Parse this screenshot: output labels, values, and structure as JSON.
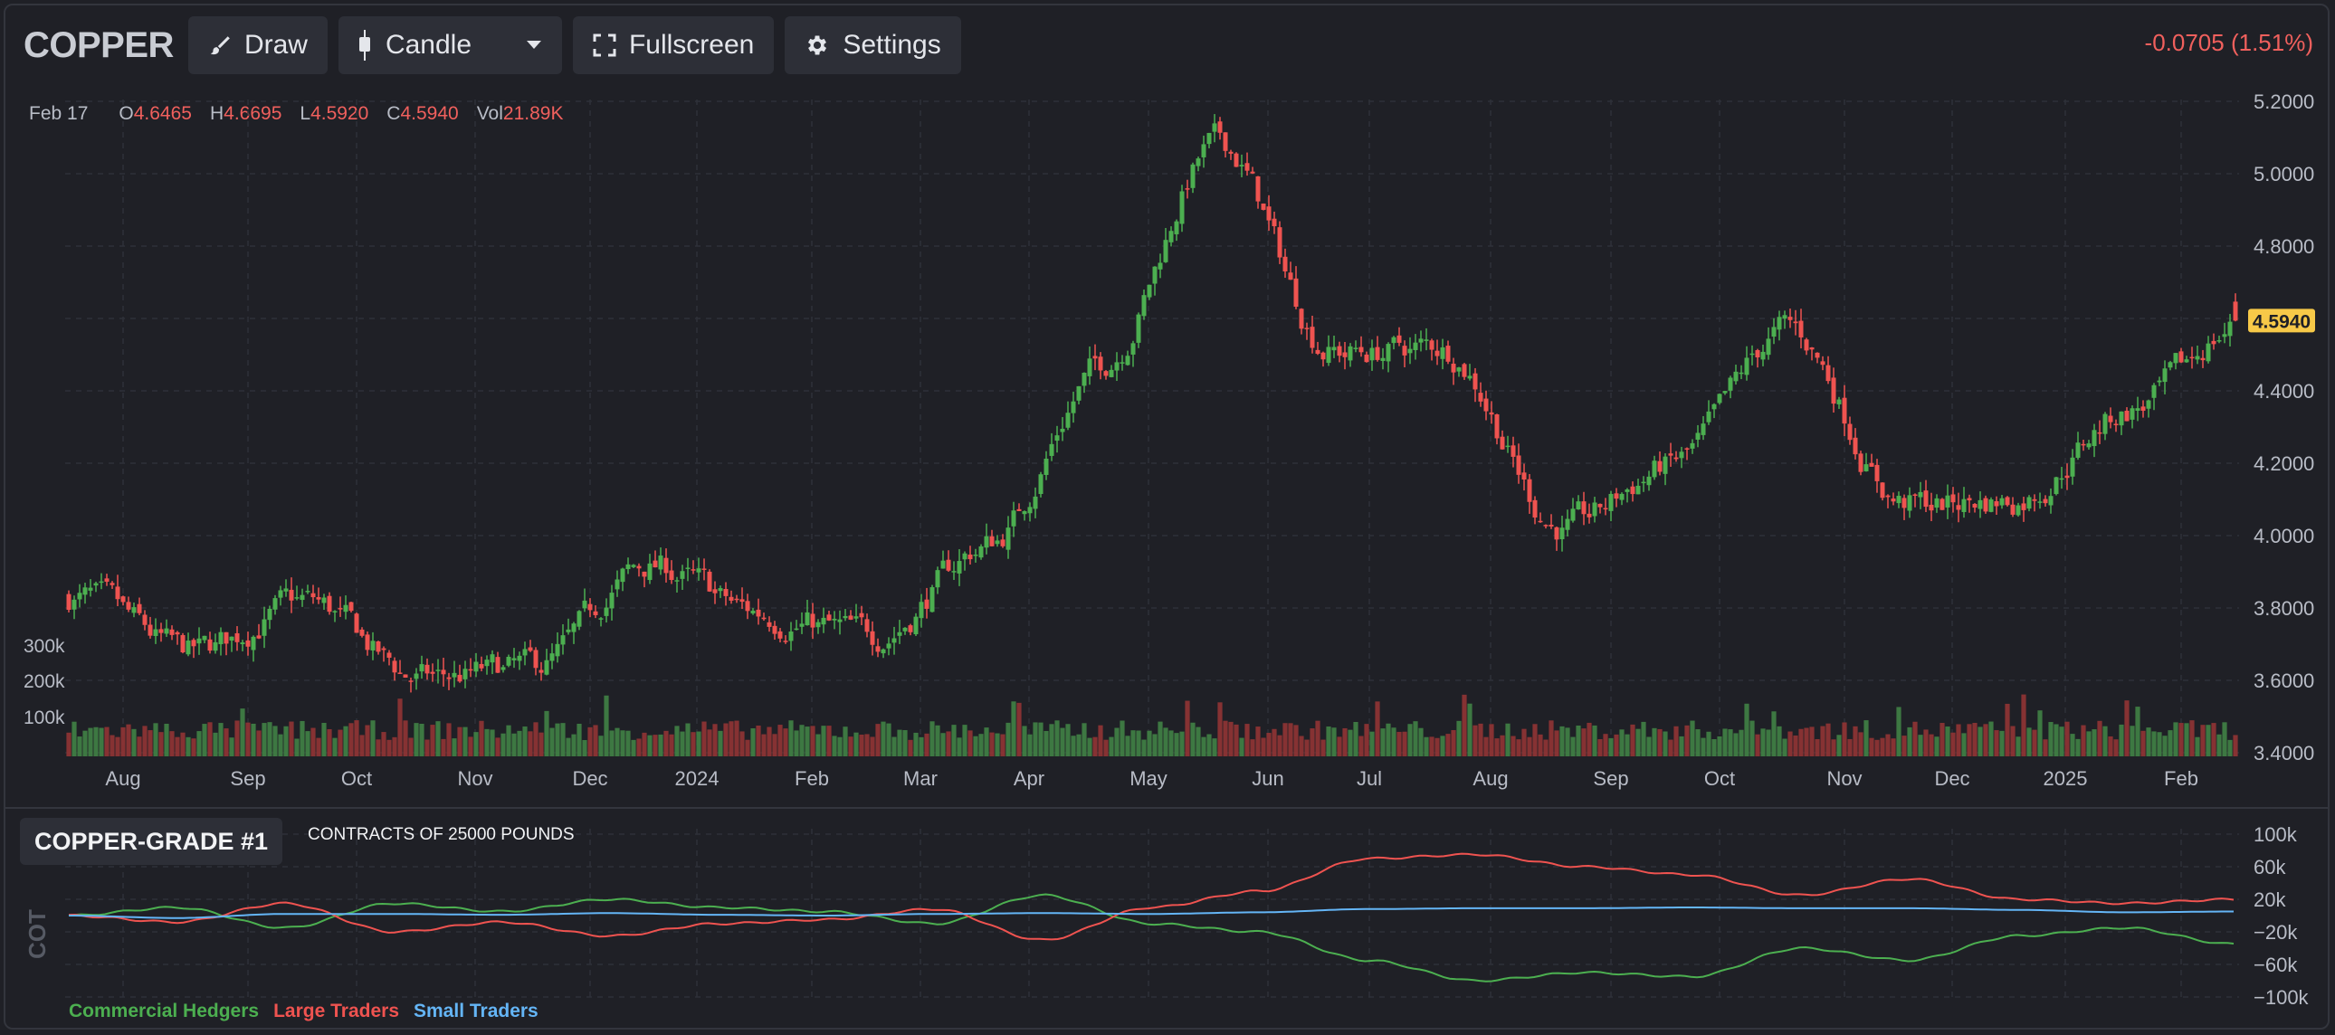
{
  "toolbar": {
    "symbol": "COPPER",
    "draw_label": "Draw",
    "chart_type_label": "Candle",
    "fullscreen_label": "Fullscreen",
    "settings_label": "Settings",
    "change": "-0.0705 (1.51%)"
  },
  "legend_ohlc": {
    "date": "Feb 17",
    "open_key": "O",
    "open": "4.6465",
    "high_key": "H",
    "high": "4.6695",
    "low_key": "L",
    "low": "4.5920",
    "close_key": "C",
    "close": "4.5940",
    "vol_key": "Vol",
    "vol": "21.89K"
  },
  "colors": {
    "up": "#4caf50",
    "down": "#ef5350",
    "bg": "#1f2026",
    "grid": "#2e3038",
    "text": "#b8bcc6",
    "last_price_tag": "#f7c948",
    "commercial": "#4caf50",
    "large": "#ef5350",
    "small": "#64b5f6"
  },
  "icons": {
    "draw": "brush-icon",
    "candle": "candlestick-icon",
    "dropdown": "chevron-down-icon",
    "fullscreen": "fullscreen-icon",
    "settings": "gear-icon"
  },
  "cot": {
    "title": "COPPER-GRADE #1",
    "subtitle": "CONTRACTS OF 25000 POUNDS",
    "axis_label": "COT",
    "legend": [
      {
        "name": "Commercial Hedgers",
        "color": "#4caf50"
      },
      {
        "name": "Large Traders",
        "color": "#ef5350"
      },
      {
        "name": "Small Traders",
        "color": "#64b5f6"
      }
    ]
  },
  "chart_data": [
    {
      "type": "candlestick",
      "title": "COPPER",
      "price_ticks": [
        "5.2000",
        "5.0000",
        "4.8000",
        "4.6000",
        "4.4000",
        "4.2000",
        "4.0000",
        "3.8000",
        "3.6000",
        "3.4000"
      ],
      "ylim": [
        3.4,
        5.2
      ],
      "last_price": "4.5940",
      "x_ticks": [
        "Aug",
        "Sep",
        "Oct",
        "Nov",
        "Dec",
        "2024",
        "Feb",
        "Mar",
        "Apr",
        "May",
        "Jun",
        "Jul",
        "Aug",
        "Sep",
        "Oct",
        "Nov",
        "Dec",
        "2025",
        "Feb"
      ],
      "close_path": [
        {
          "month": "Jul 2023",
          "close": 3.83
        },
        {
          "month": "Aug 2023",
          "close": 3.67
        },
        {
          "month": "Sep 2023",
          "close": 3.82
        },
        {
          "month": "Oct 2023",
          "close": 3.6
        },
        {
          "month": "Nov 2023",
          "close": 3.63
        },
        {
          "month": "Dec 2023",
          "close": 3.92
        },
        {
          "month": "Jan 2024",
          "close": 3.78
        },
        {
          "month": "Feb 2024",
          "close": 3.72
        },
        {
          "month": "Mar 2024",
          "close": 3.98
        },
        {
          "month": "Apr 2024",
          "close": 4.48
        },
        {
          "month": "May 2024",
          "close": 5.1
        },
        {
          "month": "Jun 2024",
          "close": 4.5
        },
        {
          "month": "Jul 2024",
          "close": 4.52
        },
        {
          "month": "Aug 2024",
          "close": 4.01
        },
        {
          "month": "Sep 2024",
          "close": 4.2
        },
        {
          "month": "Oct 2024",
          "close": 4.58
        },
        {
          "month": "Nov 2024",
          "close": 4.08
        },
        {
          "month": "Dec 2024",
          "close": 4.1
        },
        {
          "month": "Jan 2025",
          "close": 4.35
        },
        {
          "month": "Feb 2025",
          "close": 4.594
        }
      ],
      "volume_ticks": [
        "300k",
        "200k",
        "100k"
      ],
      "last_bar": {
        "date": "Feb 17",
        "open": 4.6465,
        "high": 4.6695,
        "low": 4.592,
        "close": 4.594,
        "volume": "21.89K"
      }
    },
    {
      "type": "line",
      "title": "COPPER-GRADE #1",
      "y_ticks": [
        "100k",
        "60k",
        "20k",
        "−20k",
        "−60k",
        "−100k"
      ],
      "ylim": [
        -100000,
        100000
      ],
      "series": [
        {
          "name": "Commercial Hedgers",
          "values": [
            0,
            10000,
            -15000,
            15000,
            5000,
            20000,
            10000,
            5000,
            -10000,
            25000,
            -10000,
            -20000,
            -55000,
            -80000,
            -70000,
            -75000,
            -40000,
            -55000,
            -25000,
            -15000,
            -35000
          ]
        },
        {
          "name": "Large Traders",
          "values": [
            0,
            -8000,
            15000,
            -20000,
            -8000,
            -25000,
            -10000,
            -5000,
            8000,
            -30000,
            10000,
            30000,
            70000,
            75000,
            60000,
            50000,
            25000,
            45000,
            20000,
            15000,
            20000
          ]
        },
        {
          "name": "Small Traders",
          "values": [
            0,
            -3000,
            2000,
            2000,
            1000,
            3000,
            1000,
            0,
            2000,
            3000,
            2000,
            4000,
            8000,
            9000,
            9000,
            10000,
            9000,
            9000,
            7000,
            4000,
            5000
          ]
        }
      ]
    }
  ]
}
